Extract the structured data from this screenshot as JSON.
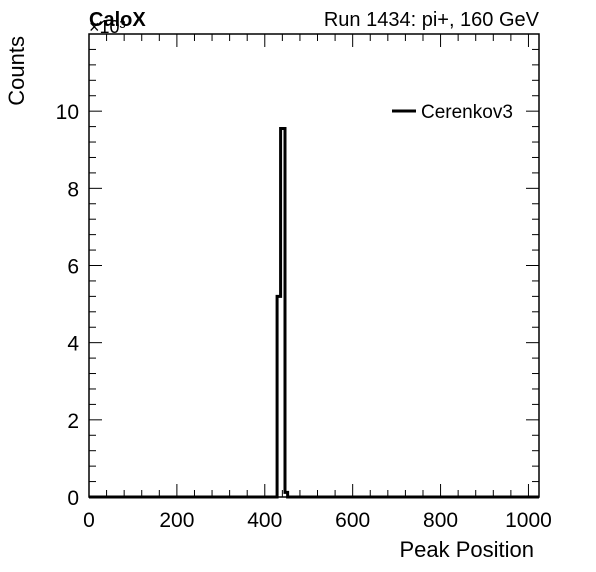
{
  "header": {
    "experiment_label": "CaloX",
    "run_label": "Run 1434: pi+, 160 GeV"
  },
  "chart_data": {
    "type": "histogram",
    "title": "",
    "xlabel": "Peak Position",
    "ylabel": "Counts",
    "y_multiplier_label": "×10³",
    "xlim": [
      0,
      1024
    ],
    "ylim": [
      0,
      12
    ],
    "y_unit_scale": 1000,
    "grid": false,
    "legend_position": "top-right",
    "x_ticks": [
      0,
      200,
      400,
      600,
      800,
      1000
    ],
    "y_ticks": [
      0,
      2,
      4,
      6,
      8,
      10
    ],
    "series": [
      {
        "name": "Cerenkov3",
        "color": "#000000",
        "bin_edges": [
          0,
          428,
          436,
          446,
          452,
          1024
        ],
        "values": [
          0,
          5.2,
          9.55,
          0.12,
          0
        ]
      }
    ]
  }
}
